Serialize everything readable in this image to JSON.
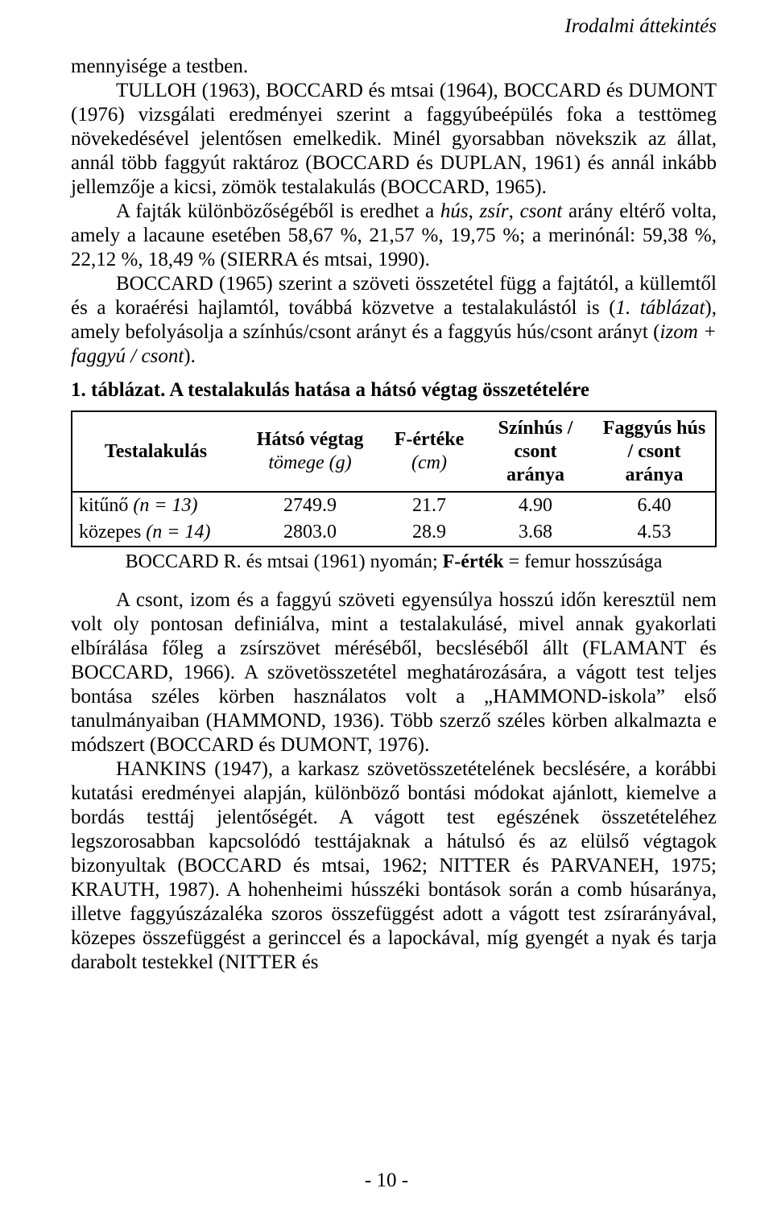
{
  "header": "Irodalmi áttekintés",
  "p1_start": "mennyisége a testben.",
  "p1b": "TULLOH (1963), BOCCARD és mtsai (1964), BOCCARD és DUMONT (1976) vizsgálati eredményei szerint a faggyúbeépülés foka a testtömeg növekedésével jelentősen emelkedik. Minél gyorsabban növekszik az állat, annál több faggyút raktároz (BOCCARD és DUPLAN, 1961) és annál inkább jellemzője a kicsi, zömök testalakulás (BOCCARD, 1965).",
  "p2a": "A fajták különbözőségéből is eredhet a ",
  "p2_it1": "hús",
  "p2_sep1": ", ",
  "p2_it2": "zsír",
  "p2_sep2": ", ",
  "p2_it3": "csont",
  "p2b": " arány eltérő volta, amely a lacaune esetében 58,67 %, 21,57 %, 19,75 %; a merinónál: 59,38 %, 22,12 %, 18,49 % (SIERRA és mtsai, 1990).",
  "p3a": "BOCCARD (1965) szerint a szöveti összetétel függ a fajtától, a küllemtől és a koraérési hajlamtól, továbbá közvetve a testalakulástól is (",
  "p3_it1": "1. táblázat",
  "p3b": "), amely befolyásolja a színhús/csont arányt és a faggyús hús/csont arányt (",
  "p3_it2": "izom + faggyú / csont",
  "p3c": ").",
  "table_title": "1. táblázat. A testalakulás hatása a hátsó végtag összetételére",
  "th1": "Testalakulás",
  "th2a": "Hátsó végtag",
  "th2b": "tömege (g)",
  "th3a": "F-értéke",
  "th3b": "(cm)",
  "th4a": "Színhús /",
  "th4b": "csont aránya",
  "th5a": "Faggyús hús",
  "th5b": "/ csont",
  "th5c": "aránya",
  "r1c1a": "kitűnő ",
  "r1c1b": "(n = 13)",
  "r1c2": "2749.9",
  "r1c3": "21.7",
  "r1c4": "4.90",
  "r1c5": "6.40",
  "r2c1a": "közepes ",
  "r2c1b": "(n = 14)",
  "r2c2": "2803.0",
  "r2c3": "28.9",
  "r2c4": "3.68",
  "r2c5": "4.53",
  "caption_a": "BOCCARD R. és mtsai (1961) nyomán; ",
  "caption_b": "F-érték",
  "caption_c": " = femur hosszúsága",
  "p4": "A csont, izom és a faggyú szöveti egyensúlya hosszú időn keresztül nem volt oly pontosan definiálva, mint a testalakulásé, mivel annak gyakorlati elbírálása főleg a zsírszövet méréséből, becsléséből állt (FLAMANT és BOCCARD, 1966). A szövetösszetétel meghatározására, a vágott test teljes bontása széles körben használatos volt a „HAMMOND-iskola” első tanulmányaiban (HAMMOND, 1936). Több szerző széles körben alkalmazta e módszert (BOCCARD és DUMONT, 1976).",
  "p5": "HANKINS (1947), a karkasz szövetösszetételének becslésére, a korábbi kutatási eredményei alapján, különböző bontási módokat ajánlott, kiemelve a bordás testtáj jelentőségét. A vágott test egészének összetételéhez legszorosabban kapcsolódó testtájaknak a hátulsó és az elülső végtagok bizonyultak (BOCCARD és mtsai, 1962; NITTER és PARVANEH, 1975; KRAUTH, 1987). A hohenheimi hússzéki bontások során a comb húsaránya, illetve faggyúszázaléka szoros összefüggést adott a vágott test zsírarányával, közepes összefüggést a gerinccel és a lapockával, míg gyengét a nyak és tarja darabolt testekkel (NITTER és",
  "page_num": "- 10 -"
}
